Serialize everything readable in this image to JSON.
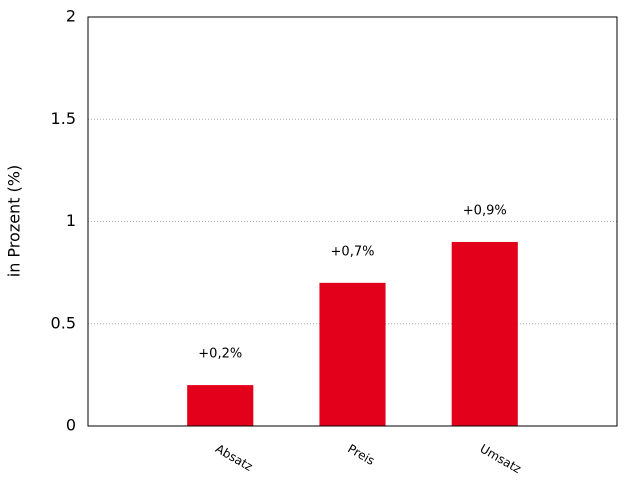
{
  "chart_data": {
    "type": "bar",
    "y_label": "in Prozent (%)",
    "categories": [
      "Absatz",
      "Preis",
      "Umsatz"
    ],
    "values": [
      0.2,
      0.7,
      0.9
    ],
    "value_labels": [
      "+0,2%",
      "+0,7%",
      "+0,9%"
    ],
    "color": "#e2001a",
    "ylim": [
      0,
      2
    ],
    "yticks": [
      0,
      0.5,
      1,
      1.5,
      2
    ],
    "grid": true
  }
}
